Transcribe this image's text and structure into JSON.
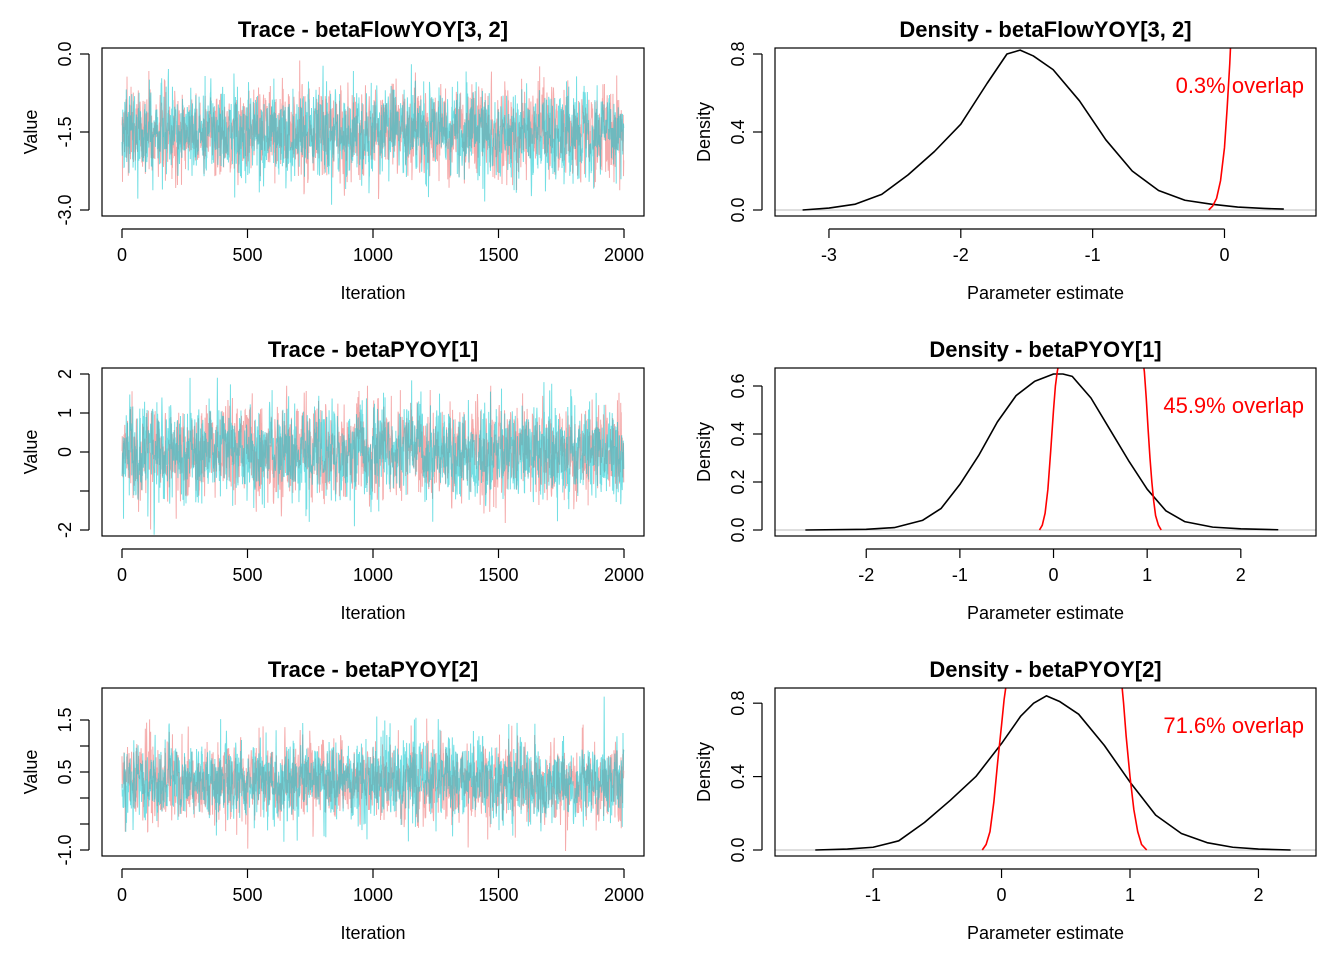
{
  "chart_data": [
    {
      "type": "line",
      "panel": "trace",
      "title": "Trace - betaFlowYOY[3, 2]",
      "xlabel": "Iteration",
      "ylabel": "Value",
      "xlim": [
        0,
        2000
      ],
      "ylim": [
        -3.0,
        0.0
      ],
      "x_ticks": [
        0,
        500,
        1000,
        1500,
        2000
      ],
      "y_ticks": [
        -3.0,
        -1.5,
        0.0
      ],
      "y_tick_labels": [
        "-3.0",
        "-1.5",
        "0.0"
      ],
      "series": [
        {
          "chain": 1,
          "color": "#f08080",
          "mean": -1.5,
          "sd": 0.42,
          "min": -2.95,
          "max": 0.15
        },
        {
          "chain": 2,
          "color": "#00c5cd",
          "mean": -1.5,
          "sd": 0.42,
          "min": -2.9,
          "max": 0.0
        }
      ],
      "n_iter": 2000
    },
    {
      "type": "line",
      "panel": "density",
      "title": "Density - betaFlowYOY[3, 2]",
      "xlabel": "Parameter estimate",
      "ylabel": "Density",
      "xlim": [
        -3.25,
        0.55
      ],
      "ylim": [
        0.0,
        0.8
      ],
      "x_ticks": [
        -3,
        -2,
        -1,
        0
      ],
      "y_ticks": [
        0.0,
        0.4,
        0.8
      ],
      "y_tick_labels": [
        "0.0",
        "0.4",
        "0.8"
      ],
      "overlap_label": "0.3% overlap",
      "series": [
        {
          "color": "#000000",
          "x": [
            -3.2,
            -3.0,
            -2.8,
            -2.6,
            -2.4,
            -2.2,
            -2.0,
            -1.8,
            -1.65,
            -1.55,
            -1.45,
            -1.3,
            -1.1,
            -0.9,
            -0.7,
            -0.5,
            -0.3,
            -0.1,
            0.1,
            0.3,
            0.45
          ],
          "y": [
            0.0,
            0.01,
            0.03,
            0.08,
            0.18,
            0.3,
            0.44,
            0.65,
            0.8,
            0.82,
            0.79,
            0.72,
            0.56,
            0.36,
            0.2,
            0.1,
            0.05,
            0.03,
            0.015,
            0.008,
            0.005
          ]
        },
        {
          "color": "#ff0000",
          "x": [
            -0.12,
            -0.09,
            -0.06,
            -0.03,
            0.0,
            0.02,
            0.04,
            0.05
          ],
          "y": [
            0.0,
            0.02,
            0.06,
            0.15,
            0.32,
            0.52,
            0.75,
            0.9
          ]
        }
      ]
    },
    {
      "type": "line",
      "panel": "trace",
      "title": "Trace - betaPYOY[1]",
      "xlabel": "Iteration",
      "ylabel": "Value",
      "xlim": [
        0,
        2000
      ],
      "ylim": [
        -2.0,
        2.0
      ],
      "x_ticks": [
        0,
        500,
        1000,
        1500,
        2000
      ],
      "y_ticks": [
        -2,
        -1,
        0,
        1,
        2
      ],
      "y_tick_labels": [
        "-2",
        "",
        "0",
        "1",
        "2"
      ],
      "series": [
        {
          "chain": 1,
          "color": "#f08080",
          "mean": 0.0,
          "sd": 0.6,
          "min": -2.1,
          "max": 1.7
        },
        {
          "chain": 2,
          "color": "#00c5cd",
          "mean": 0.0,
          "sd": 0.6,
          "min": -2.5,
          "max": 2.1
        }
      ],
      "n_iter": 2000
    },
    {
      "type": "line",
      "panel": "density",
      "title": "Density - betaPYOY[1]",
      "xlabel": "Parameter estimate",
      "ylabel": "Density",
      "xlim": [
        -2.75,
        2.6
      ],
      "ylim": [
        0.0,
        0.65
      ],
      "x_ticks": [
        -2,
        -1,
        0,
        1,
        2
      ],
      "y_ticks": [
        0.0,
        0.2,
        0.4,
        0.6
      ],
      "y_tick_labels": [
        "0.0",
        "0.2",
        "0.4",
        "0.6"
      ],
      "overlap_label": "45.9% overlap",
      "series": [
        {
          "color": "#000000",
          "x": [
            -2.65,
            -2.0,
            -1.7,
            -1.4,
            -1.2,
            -1.0,
            -0.8,
            -0.6,
            -0.4,
            -0.2,
            0.0,
            0.1,
            0.2,
            0.4,
            0.6,
            0.8,
            1.0,
            1.2,
            1.4,
            1.7,
            2.0,
            2.4
          ],
          "y": [
            0.0,
            0.003,
            0.01,
            0.04,
            0.09,
            0.19,
            0.31,
            0.45,
            0.56,
            0.62,
            0.65,
            0.65,
            0.64,
            0.55,
            0.42,
            0.29,
            0.17,
            0.08,
            0.035,
            0.012,
            0.005,
            0.001
          ]
        },
        {
          "color": "#ff0000",
          "x": [
            -0.15,
            -0.12,
            -0.09,
            -0.06,
            -0.03,
            0.0,
            0.02,
            0.04,
            0.06,
            0.08
          ],
          "y": [
            0.0,
            0.02,
            0.07,
            0.17,
            0.33,
            0.5,
            0.6,
            0.66,
            0.7,
            0.72
          ]
        },
        {
          "color": "#ff0000",
          "x": [
            0.95,
            0.97,
            0.99,
            1.01,
            1.03,
            1.05,
            1.07,
            1.09,
            1.12,
            1.15
          ],
          "y": [
            0.72,
            0.66,
            0.55,
            0.42,
            0.3,
            0.2,
            0.12,
            0.06,
            0.02,
            0.0
          ]
        }
      ]
    },
    {
      "type": "line",
      "panel": "trace",
      "title": "Trace - betaPYOY[2]",
      "xlabel": "Iteration",
      "ylabel": "Value",
      "xlim": [
        0,
        2000
      ],
      "ylim": [
        -1.0,
        2.0
      ],
      "x_ticks": [
        0,
        500,
        1000,
        1500,
        2000
      ],
      "y_ticks": [
        -1.0,
        -0.5,
        0.0,
        0.5,
        1.0,
        1.5
      ],
      "y_tick_labels": [
        "-1.0",
        "",
        "",
        "0.5",
        "",
        "1.5"
      ],
      "series": [
        {
          "chain": 1,
          "color": "#f08080",
          "mean": 0.33,
          "sd": 0.38,
          "min": -1.15,
          "max": 1.65
        },
        {
          "chain": 2,
          "color": "#00c5cd",
          "mean": 0.33,
          "sd": 0.38,
          "min": -1.1,
          "max": 1.95
        }
      ],
      "n_iter": 2000
    },
    {
      "type": "line",
      "panel": "density",
      "title": "Density - betaPYOY[2]",
      "xlabel": "Parameter estimate",
      "ylabel": "Density",
      "xlim": [
        -1.6,
        2.3
      ],
      "ylim": [
        0.0,
        0.85
      ],
      "x_ticks": [
        -1,
        0,
        1,
        2
      ],
      "y_ticks": [
        0.0,
        0.4,
        0.8
      ],
      "y_tick_labels": [
        "0.0",
        "0.4",
        "0.8"
      ],
      "overlap_label": "71.6% overlap",
      "series": [
        {
          "color": "#000000",
          "x": [
            -1.45,
            -1.2,
            -1.0,
            -0.8,
            -0.6,
            -0.4,
            -0.2,
            0.0,
            0.15,
            0.25,
            0.35,
            0.45,
            0.6,
            0.8,
            1.0,
            1.2,
            1.4,
            1.6,
            1.8,
            2.0,
            2.25
          ],
          "y": [
            0.0,
            0.005,
            0.015,
            0.05,
            0.15,
            0.27,
            0.4,
            0.58,
            0.73,
            0.8,
            0.84,
            0.81,
            0.74,
            0.57,
            0.37,
            0.19,
            0.09,
            0.04,
            0.015,
            0.005,
            0.0
          ]
        },
        {
          "color": "#ff0000",
          "x": [
            -0.15,
            -0.12,
            -0.09,
            -0.06,
            -0.03,
            0.0,
            0.02,
            0.04,
            0.05
          ],
          "y": [
            0.0,
            0.03,
            0.1,
            0.26,
            0.48,
            0.68,
            0.82,
            0.92,
            0.95
          ]
        },
        {
          "color": "#ff0000",
          "x": [
            0.93,
            0.95,
            0.97,
            1.0,
            1.03,
            1.06,
            1.09,
            1.13
          ],
          "y": [
            0.95,
            0.8,
            0.62,
            0.4,
            0.22,
            0.1,
            0.03,
            0.0
          ]
        }
      ]
    }
  ]
}
